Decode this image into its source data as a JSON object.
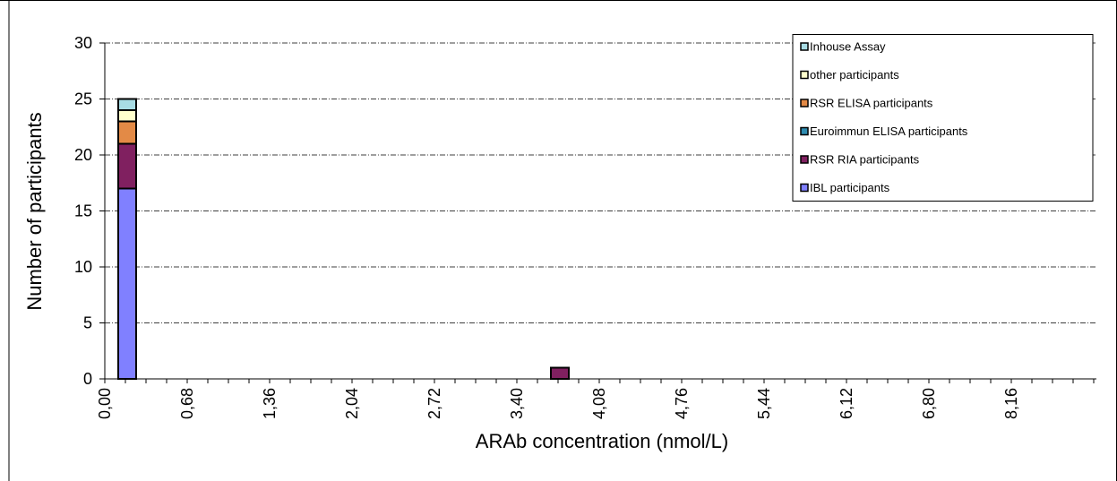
{
  "chart_data": {
    "type": "bar",
    "stacked": true,
    "title": "",
    "xlabel": "ARAb concentration (nmol/L)",
    "ylabel": "Number of participants",
    "ylim": [
      0,
      30
    ],
    "yticks": [
      "0",
      "5",
      "10",
      "15",
      "20",
      "25",
      "30"
    ],
    "xticks": [
      "0,00",
      "0,68",
      "1,36",
      "2,04",
      "2,72",
      "3,40",
      "4,08",
      "4,76",
      "5,44",
      "6,12",
      "6,80",
      "8,16"
    ],
    "grid": true,
    "legend_position": "top-right",
    "bins": [
      {
        "bin_index": 0,
        "stack": {
          "IBL participants": 17,
          "RSR RIA participants": 4,
          "Euroimmun ELISA participants": 0,
          "RSR ELISA participants": 2,
          "other participants": 1,
          "Inhouse Assay": 1
        }
      },
      {
        "bin_index": 21,
        "stack": {
          "IBL participants": 0,
          "RSR RIA participants": 1,
          "Euroimmun ELISA participants": 0,
          "RSR ELISA participants": 0,
          "other participants": 0,
          "Inhouse Assay": 0
        }
      }
    ],
    "series": [
      {
        "name": "IBL participants",
        "color": "#8080ff"
      },
      {
        "name": "RSR RIA participants",
        "color": "#802060"
      },
      {
        "name": "Euroimmun ELISA participants",
        "color": "#2e8bb0"
      },
      {
        "name": "RSR ELISA participants",
        "color": "#e38a46"
      },
      {
        "name": "other participants",
        "color": "#ffffcc"
      },
      {
        "name": "Inhouse Assay",
        "color": "#a8dce4"
      }
    ],
    "legend_order": [
      "Inhouse Assay",
      "other participants",
      "RSR ELISA participants",
      "Euroimmun ELISA participants",
      "RSR RIA participants",
      "IBL participants"
    ]
  }
}
